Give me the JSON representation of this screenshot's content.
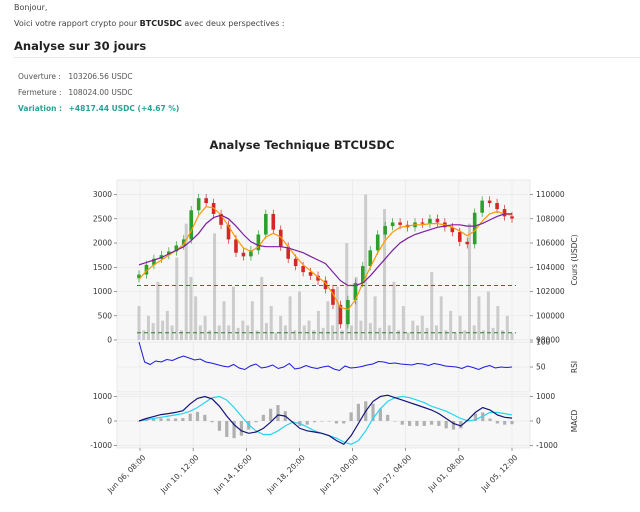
{
  "message": {
    "greeting": "Bonjour,",
    "intro_prefix": "Voici votre rapport crypto pour ",
    "symbol": "BTCUSDC",
    "intro_suffix": " avec deux perspectives :",
    "section_title": "Analyse sur 30 jours"
  },
  "stats": {
    "open_label": "Ouverture :",
    "open_value": "103206.56 USDC",
    "close_label": "Fermeture :",
    "close_value": "108024.00 USDC",
    "variation_label": "Variation :",
    "variation_value": "+4817.44 USDC (+4.67 %)"
  },
  "colors": {
    "accent": "#2aa198",
    "up": "#2ca02c",
    "down": "#d62728"
  },
  "chart_data": {
    "type": "line",
    "title": "Analyse Technique BTCUSDC",
    "x_tick_labels": [
      "Jun 06, 08:00",
      "Jun 10, 12:00",
      "Jun 14, 16:00",
      "Jun 18, 20:00",
      "Jun 23, 00:00",
      "Jun 27, 04:00",
      "Jul 01, 08:00",
      "Jul 05, 12:00"
    ],
    "price_panel": {
      "ylabel": "Cours (USDC)",
      "y_ticks": [
        98000,
        100000,
        102000,
        104000,
        106000,
        108000,
        110000
      ],
      "ylim": [
        98000,
        111200
      ],
      "close": [
        103400,
        104200,
        104700,
        105000,
        105300,
        105800,
        106300,
        108700,
        109700,
        109300,
        108400,
        107500,
        106300,
        105200,
        104900,
        105400,
        106700,
        108400,
        107100,
        105700,
        104700,
        104100,
        103600,
        103300,
        102900,
        102200,
        100900,
        99300,
        101300,
        102700,
        104100,
        105400,
        106700,
        107400,
        107700,
        107500,
        107300,
        107700,
        107600,
        108000,
        107700,
        107300,
        106900,
        106100,
        105900,
        108500,
        109500,
        109300,
        108800,
        108200,
        108024
      ],
      "sma_fast": [
        103000,
        103700,
        104200,
        104600,
        105000,
        105400,
        105900,
        107000,
        108300,
        109000,
        108900,
        108300,
        107400,
        106400,
        105600,
        105300,
        105700,
        106500,
        106800,
        106500,
        105700,
        104900,
        104200,
        103700,
        103200,
        102700,
        101800,
        100700,
        100500,
        101300,
        102700,
        104000,
        105200,
        106200,
        106900,
        107300,
        107400,
        107500,
        107500,
        107600,
        107600,
        107500,
        107300,
        107000,
        106600,
        107000,
        107800,
        108400,
        108600,
        108400,
        108300
      ],
      "sma_slow": [
        104200,
        104400,
        104600,
        104800,
        105100,
        105400,
        105700,
        106200,
        106800,
        107600,
        108100,
        108300,
        108000,
        107400,
        106700,
        106100,
        105800,
        105700,
        105700,
        105700,
        105600,
        105400,
        105200,
        104900,
        104600,
        104300,
        103600,
        102900,
        102500,
        102500,
        102700,
        103300,
        104000,
        104700,
        105400,
        106000,
        106400,
        106700,
        106900,
        107100,
        107300,
        107400,
        107500,
        107500,
        107400,
        107400,
        107600,
        107900,
        108200,
        108400,
        108400
      ],
      "hline": 102500
    },
    "volume_panel": {
      "y_ticks": [
        0,
        500,
        1000,
        1500,
        2000,
        2500,
        3000
      ],
      "ylim": [
        0,
        3300
      ],
      "values": [
        700,
        200,
        500,
        350,
        1200,
        400,
        600,
        300,
        1700,
        200,
        2400,
        1300,
        900,
        300,
        500,
        200,
        2200,
        300,
        800,
        300,
        1100,
        250,
        400,
        300,
        800,
        200,
        1300,
        350,
        700,
        150,
        500,
        300,
        900,
        200,
        1000,
        300,
        400,
        200,
        600,
        250,
        800,
        300,
        1100,
        200,
        2000,
        300,
        1300,
        400,
        3000,
        350,
        900,
        250,
        2700,
        300,
        1200,
        200,
        700,
        150,
        400,
        300,
        500,
        250,
        1400,
        300,
        900,
        200,
        600,
        150,
        500,
        200,
        2400,
        300,
        900,
        200,
        1000,
        250,
        700,
        200,
        500,
        150
      ],
      "hline": 150
    },
    "rsi_panel": {
      "ylabel": "RSI",
      "y_ticks": [
        50,
        100
      ],
      "ylim": [
        0,
        100
      ],
      "values": [
        100,
        60,
        55,
        62,
        60,
        65,
        63,
        68,
        72,
        68,
        64,
        66,
        60,
        58,
        55,
        52,
        50,
        55,
        48,
        45,
        52,
        56,
        48,
        50,
        54,
        47,
        50,
        57,
        46,
        48,
        53,
        49,
        47,
        50,
        52,
        46,
        43,
        52,
        48,
        49,
        51,
        54,
        56,
        61,
        60,
        57,
        58,
        56,
        55,
        54,
        57,
        56,
        53,
        57,
        55,
        52,
        51,
        50,
        47,
        52,
        49,
        45,
        50,
        53,
        48,
        50,
        49,
        50
      ]
    },
    "macd_panel": {
      "ylabel": "MACD",
      "y_ticks": [
        -1000,
        0,
        1000
      ],
      "ylim": [
        -1100,
        1100
      ],
      "macd": [
        0,
        100,
        180,
        260,
        300,
        350,
        420,
        700,
        920,
        1000,
        900,
        600,
        200,
        -150,
        -400,
        -500,
        -450,
        -300,
        -50,
        250,
        200,
        -50,
        -300,
        -400,
        -450,
        -500,
        -600,
        -800,
        -950,
        -600,
        -100,
        400,
        800,
        1000,
        1050,
        950,
        850,
        750,
        650,
        550,
        450,
        300,
        100,
        -100,
        -200,
        50,
        350,
        550,
        450,
        250,
        150,
        120
      ],
      "signal": [
        0,
        50,
        100,
        150,
        200,
        250,
        300,
        400,
        550,
        750,
        950,
        1000,
        850,
        550,
        200,
        -150,
        -400,
        -550,
        -550,
        -400,
        -200,
        -50,
        -100,
        -250,
        -400,
        -500,
        -600,
        -700,
        -850,
        -950,
        -800,
        -400,
        100,
        500,
        800,
        950,
        1000,
        950,
        850,
        750,
        600,
        500,
        400,
        250,
        100,
        0,
        50,
        200,
        350,
        350,
        300,
        250
      ]
    }
  }
}
